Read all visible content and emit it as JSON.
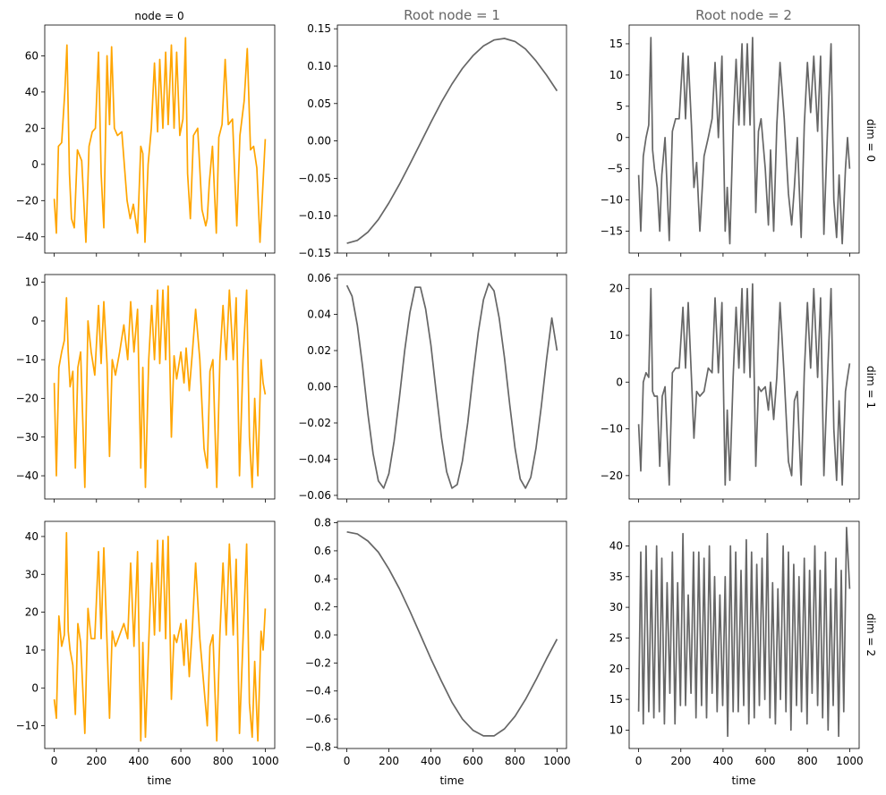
{
  "figure": {
    "columns": [
      {
        "title": "node = 0",
        "title_color": "#000000"
      },
      {
        "title": "Root node = 1",
        "title_color": "#666666"
      },
      {
        "title": "Root node = 2",
        "title_color": "#666666"
      }
    ],
    "rows": [
      {
        "label": "dim = 0"
      },
      {
        "label": "dim = 1"
      },
      {
        "label": "dim = 2"
      }
    ],
    "xlabel": "time",
    "colors": {
      "orange": "#ffa500",
      "gray": "#666666"
    }
  },
  "chart_data": [
    {
      "type": "line",
      "row": 0,
      "col": 0,
      "color": "#ffa500",
      "xlim": [
        -45,
        1045
      ],
      "ylim": [
        -49,
        77
      ],
      "yticks": [
        -40,
        -20,
        0,
        20,
        40,
        60
      ],
      "xticks": [
        0,
        200,
        400,
        600,
        800,
        1000
      ],
      "show_xtick_labels": false,
      "x": [
        0,
        10,
        20,
        35,
        50,
        60,
        72,
        82,
        95,
        110,
        130,
        150,
        165,
        180,
        195,
        210,
        222,
        235,
        250,
        262,
        272,
        285,
        300,
        320,
        345,
        360,
        375,
        395,
        410,
        420,
        430,
        445,
        460,
        475,
        490,
        500,
        515,
        528,
        540,
        555,
        568,
        580,
        595,
        610,
        622,
        632,
        645,
        660,
        680,
        700,
        718,
        725,
        735,
        750,
        768,
        780,
        795,
        810,
        825,
        845,
        865,
        880,
        900,
        915,
        930,
        945,
        960,
        975,
        985,
        1000
      ],
      "y": [
        -19,
        -38,
        10,
        12,
        40,
        66,
        -5,
        -30,
        -35,
        8,
        2,
        -43,
        10,
        18,
        20,
        62,
        -5,
        -35,
        60,
        22,
        65,
        20,
        16,
        18,
        -20,
        -30,
        -22,
        -38,
        10,
        6,
        -43,
        0,
        20,
        56,
        18,
        58,
        20,
        62,
        22,
        66,
        20,
        62,
        16,
        25,
        70,
        -5,
        -30,
        16,
        20,
        -25,
        -34,
        -30,
        -10,
        10,
        -38,
        15,
        22,
        58,
        22,
        25,
        -34,
        16,
        35,
        64,
        8,
        10,
        -2,
        -43,
        -20,
        14
      ]
    },
    {
      "type": "line",
      "row": 0,
      "col": 1,
      "color": "#666666",
      "xlim": [
        -45,
        1045
      ],
      "ylim": [
        -0.15,
        0.155
      ],
      "yticks": [
        -0.15,
        -0.1,
        -0.05,
        0.0,
        0.05,
        0.1,
        0.15
      ],
      "ytick_labels": [
        "−0.15",
        "−0.10",
        "−0.05",
        "0.00",
        "0.05",
        "0.10",
        "0.15"
      ],
      "xticks": [
        0,
        200,
        400,
        600,
        800,
        1000
      ],
      "show_xtick_labels": false,
      "x": [
        0,
        50,
        100,
        150,
        200,
        250,
        300,
        350,
        400,
        450,
        500,
        550,
        600,
        650,
        700,
        750,
        800,
        850,
        900,
        950,
        1000
      ],
      "y": [
        -0.137,
        -0.133,
        -0.122,
        -0.105,
        -0.083,
        -0.058,
        -0.031,
        -0.003,
        0.025,
        0.052,
        0.076,
        0.097,
        0.114,
        0.127,
        0.135,
        0.137,
        0.133,
        0.123,
        0.107,
        0.088,
        0.067
      ]
    },
    {
      "type": "line",
      "row": 0,
      "col": 2,
      "color": "#666666",
      "xlim": [
        -45,
        1045
      ],
      "ylim": [
        -18.5,
        18
      ],
      "yticks": [
        -15,
        -10,
        -5,
        0,
        5,
        10,
        15
      ],
      "xticks": [
        0,
        200,
        400,
        600,
        800,
        1000
      ],
      "show_xtick_labels": false,
      "x": [
        0,
        10,
        22,
        35,
        48,
        58,
        66,
        75,
        88,
        100,
        110,
        125,
        145,
        160,
        175,
        192,
        210,
        222,
        235,
        250,
        262,
        275,
        290,
        310,
        330,
        348,
        362,
        378,
        395,
        410,
        420,
        432,
        448,
        462,
        475,
        490,
        500,
        515,
        528,
        540,
        555,
        568,
        580,
        600,
        615,
        625,
        640,
        655,
        670,
        690,
        710,
        725,
        738,
        752,
        770,
        785,
        800,
        815,
        830,
        848,
        862,
        878,
        895,
        912,
        925,
        938,
        950,
        965,
        980,
        990,
        1000
      ],
      "y": [
        -6,
        -15,
        -3,
        0,
        2,
        16,
        -2,
        -5,
        -8,
        -15,
        -6,
        0,
        -16.5,
        1,
        3,
        3,
        13.5,
        3,
        13,
        2,
        -8,
        -4,
        -15,
        -3,
        0,
        3,
        12,
        0,
        13,
        -15,
        -8,
        -17,
        2,
        12.5,
        2,
        15,
        2,
        15,
        2,
        16,
        -12,
        1,
        3,
        -5,
        -14,
        -2,
        -15,
        2,
        12,
        3,
        -9,
        -14,
        -8,
        0,
        -16,
        2,
        12,
        4,
        13,
        1,
        13,
        -15.5,
        1,
        15,
        -10,
        -16,
        -6,
        -17,
        -5,
        0,
        -5
      ]
    },
    {
      "type": "line",
      "row": 1,
      "col": 0,
      "color": "#ffa500",
      "xlim": [
        -45,
        1045
      ],
      "ylim": [
        -46,
        12
      ],
      "yticks": [
        -40,
        -30,
        -20,
        -10,
        0,
        10
      ],
      "xticks": [
        0,
        200,
        400,
        600,
        800,
        1000
      ],
      "show_xtick_labels": false,
      "x": [
        0,
        10,
        22,
        35,
        48,
        58,
        66,
        75,
        88,
        100,
        112,
        125,
        145,
        160,
        175,
        192,
        210,
        222,
        235,
        250,
        262,
        275,
        290,
        310,
        330,
        348,
        362,
        378,
        395,
        410,
        420,
        432,
        448,
        462,
        475,
        490,
        500,
        515,
        528,
        540,
        555,
        568,
        580,
        600,
        615,
        625,
        640,
        655,
        670,
        690,
        710,
        725,
        738,
        752,
        770,
        785,
        800,
        815,
        830,
        848,
        862,
        878,
        895,
        912,
        925,
        938,
        950,
        965,
        980,
        990,
        1000
      ],
      "y": [
        -16,
        -40,
        -12,
        -8,
        -5,
        6,
        -8,
        -17,
        -13,
        -38,
        -12,
        -8,
        -43,
        0,
        -8,
        -14,
        4,
        -11,
        5,
        -11,
        -35,
        -10,
        -14,
        -8,
        -1,
        -10,
        5,
        -8,
        3,
        -38,
        -12,
        -43,
        -10,
        4,
        -10,
        8,
        -11,
        8,
        -10,
        9,
        -30,
        -9,
        -15,
        -8,
        -16,
        -7,
        -18,
        -8,
        3,
        -10,
        -33,
        -38,
        -13,
        -10,
        -43,
        -10,
        4,
        -10,
        8,
        -10,
        6,
        -40,
        -10,
        8,
        -30,
        -43,
        -20,
        -40,
        -10,
        -16,
        -19
      ]
    },
    {
      "type": "line",
      "row": 1,
      "col": 1,
      "color": "#666666",
      "xlim": [
        -45,
        1045
      ],
      "ylim": [
        -0.062,
        0.062
      ],
      "yticks": [
        -0.06,
        -0.04,
        -0.02,
        0.0,
        0.02,
        0.04,
        0.06
      ],
      "ytick_labels": [
        "−0.06",
        "−0.04",
        "−0.02",
        "0.00",
        "0.02",
        "0.04",
        "0.06"
      ],
      "xticks": [
        0,
        200,
        400,
        600,
        800,
        1000
      ],
      "show_xtick_labels": false,
      "x": [
        0,
        25,
        50,
        75,
        100,
        125,
        150,
        175,
        200,
        225,
        250,
        275,
        300,
        325,
        350,
        375,
        400,
        425,
        450,
        475,
        500,
        525,
        550,
        575,
        600,
        625,
        650,
        675,
        700,
        725,
        750,
        775,
        800,
        825,
        850,
        875,
        900,
        925,
        950,
        975,
        1000
      ],
      "y": [
        0.056,
        0.05,
        0.034,
        0.011,
        -0.015,
        -0.037,
        -0.052,
        -0.056,
        -0.048,
        -0.03,
        -0.006,
        0.02,
        0.041,
        0.055,
        0.055,
        0.043,
        0.023,
        -0.003,
        -0.028,
        -0.047,
        -0.056,
        -0.054,
        -0.041,
        -0.02,
        0.006,
        0.03,
        0.048,
        0.057,
        0.053,
        0.038,
        0.016,
        -0.01,
        -0.034,
        -0.051,
        -0.056,
        -0.05,
        -0.034,
        -0.011,
        0.015,
        0.038,
        0.02
      ]
    },
    {
      "type": "line",
      "row": 1,
      "col": 2,
      "color": "#666666",
      "xlim": [
        -45,
        1045
      ],
      "ylim": [
        -25,
        23
      ],
      "yticks": [
        -20,
        -10,
        0,
        10,
        20
      ],
      "xticks": [
        0,
        200,
        400,
        600,
        800,
        1000
      ],
      "show_xtick_labels": false,
      "x": [
        0,
        10,
        22,
        35,
        48,
        58,
        66,
        75,
        88,
        100,
        112,
        125,
        145,
        160,
        175,
        192,
        210,
        222,
        235,
        250,
        262,
        275,
        290,
        310,
        330,
        348,
        362,
        378,
        395,
        410,
        420,
        432,
        448,
        462,
        475,
        490,
        500,
        515,
        528,
        540,
        555,
        568,
        580,
        600,
        615,
        625,
        640,
        655,
        670,
        690,
        710,
        725,
        738,
        752,
        770,
        785,
        800,
        815,
        830,
        848,
        862,
        878,
        895,
        912,
        925,
        938,
        950,
        965,
        980,
        990,
        1000
      ],
      "y": [
        -9,
        -19,
        0,
        2,
        1,
        20,
        -2,
        -3,
        -3,
        -18,
        -3,
        -1,
        -22,
        2,
        3,
        3,
        16,
        3,
        17,
        1,
        -12,
        -2,
        -3,
        -2,
        3,
        2,
        18,
        2,
        17,
        -22,
        -6,
        -21,
        1,
        16,
        3,
        20,
        2,
        20,
        1,
        21,
        -18,
        -1,
        -2,
        -1,
        -6,
        0,
        -8,
        1,
        17,
        1,
        -17,
        -20,
        -4,
        -2,
        -22,
        2,
        17,
        3,
        20,
        1,
        18,
        -20,
        1,
        20,
        -10,
        -21,
        -4,
        -22,
        -2,
        1,
        4
      ]
    },
    {
      "type": "line",
      "row": 2,
      "col": 0,
      "color": "#ffa500",
      "xlim": [
        -45,
        1045
      ],
      "ylim": [
        -16,
        44
      ],
      "yticks": [
        -10,
        0,
        10,
        20,
        30,
        40
      ],
      "xticks": [
        0,
        200,
        400,
        600,
        800,
        1000
      ],
      "show_xtick_labels": true,
      "x": [
        0,
        10,
        22,
        35,
        48,
        58,
        66,
        75,
        88,
        100,
        112,
        125,
        145,
        160,
        175,
        192,
        210,
        222,
        235,
        250,
        262,
        275,
        290,
        310,
        330,
        348,
        362,
        378,
        395,
        410,
        420,
        432,
        448,
        462,
        475,
        490,
        500,
        515,
        528,
        540,
        555,
        568,
        580,
        600,
        615,
        625,
        640,
        655,
        670,
        690,
        710,
        725,
        738,
        752,
        770,
        785,
        800,
        815,
        830,
        848,
        862,
        878,
        895,
        912,
        925,
        938,
        950,
        965,
        980,
        990,
        1000
      ],
      "y": [
        -3,
        -8,
        19,
        11,
        14,
        41,
        15,
        10,
        6,
        -7,
        17,
        12,
        -12,
        21,
        13,
        13,
        36,
        13,
        37,
        12,
        -8,
        15,
        11,
        14,
        17,
        13,
        33,
        11,
        36,
        -14,
        12,
        -13,
        12,
        33,
        14,
        39,
        15,
        39,
        13,
        40,
        -3,
        14,
        12,
        17,
        6,
        18,
        3,
        16,
        33,
        13,
        0,
        -10,
        11,
        14,
        -14,
        14,
        33,
        14,
        38,
        14,
        34,
        -12,
        13,
        38,
        -4,
        -13,
        7,
        -14,
        15,
        10,
        21
      ]
    },
    {
      "type": "line",
      "row": 2,
      "col": 1,
      "color": "#666666",
      "xlim": [
        -45,
        1045
      ],
      "ylim": [
        -0.81,
        0.81
      ],
      "yticks": [
        -0.8,
        -0.6,
        -0.4,
        -0.2,
        0.0,
        0.2,
        0.4,
        0.6,
        0.8
      ],
      "ytick_labels": [
        "−0.8",
        "−0.6",
        "−0.4",
        "−0.2",
        "0.0",
        "0.2",
        "0.4",
        "0.6",
        "0.8"
      ],
      "xticks": [
        0,
        200,
        400,
        600,
        800,
        1000
      ],
      "show_xtick_labels": true,
      "x": [
        0,
        50,
        100,
        150,
        200,
        250,
        300,
        350,
        400,
        450,
        500,
        550,
        600,
        650,
        700,
        750,
        800,
        850,
        900,
        950,
        1000
      ],
      "y": [
        0.735,
        0.72,
        0.67,
        0.59,
        0.47,
        0.33,
        0.17,
        0.0,
        -0.17,
        -0.33,
        -0.48,
        -0.6,
        -0.68,
        -0.72,
        -0.72,
        -0.67,
        -0.58,
        -0.46,
        -0.32,
        -0.17,
        -0.03
      ]
    },
    {
      "type": "line",
      "row": 2,
      "col": 2,
      "color": "#666666",
      "xlim": [
        -45,
        1045
      ],
      "ylim": [
        7,
        44
      ],
      "yticks": [
        10,
        15,
        20,
        25,
        30,
        35,
        40
      ],
      "xticks": [
        0,
        200,
        400,
        600,
        800,
        1000
      ],
      "show_xtick_labels": true,
      "x": [
        0,
        10,
        22,
        35,
        48,
        60,
        72,
        85,
        98,
        110,
        122,
        135,
        148,
        160,
        172,
        185,
        198,
        210,
        222,
        235,
        248,
        260,
        272,
        285,
        298,
        310,
        322,
        335,
        348,
        360,
        372,
        385,
        398,
        410,
        422,
        435,
        448,
        460,
        472,
        485,
        498,
        510,
        522,
        535,
        548,
        560,
        572,
        585,
        598,
        610,
        622,
        635,
        648,
        660,
        672,
        685,
        698,
        710,
        722,
        735,
        748,
        760,
        772,
        785,
        798,
        810,
        822,
        835,
        848,
        860,
        872,
        885,
        898,
        910,
        922,
        935,
        948,
        960,
        972,
        985,
        1000
      ],
      "y": [
        13,
        39,
        11,
        40,
        13,
        36,
        12,
        40,
        13,
        38,
        11,
        34,
        16,
        39,
        11,
        34,
        14,
        42,
        14,
        32,
        16,
        39,
        12,
        39,
        14,
        38,
        12,
        40,
        16,
        35,
        13,
        32,
        14,
        35,
        9,
        40,
        13,
        39,
        13,
        36,
        14,
        41,
        11,
        39,
        12,
        37,
        14,
        38,
        15,
        42,
        12,
        34,
        11,
        33,
        15,
        40,
        13,
        39,
        10,
        37,
        14,
        35,
        13,
        38,
        11,
        36,
        16,
        40,
        14,
        36,
        12,
        39,
        10,
        33,
        14,
        38,
        9,
        36,
        13,
        43,
        33
      ]
    }
  ]
}
